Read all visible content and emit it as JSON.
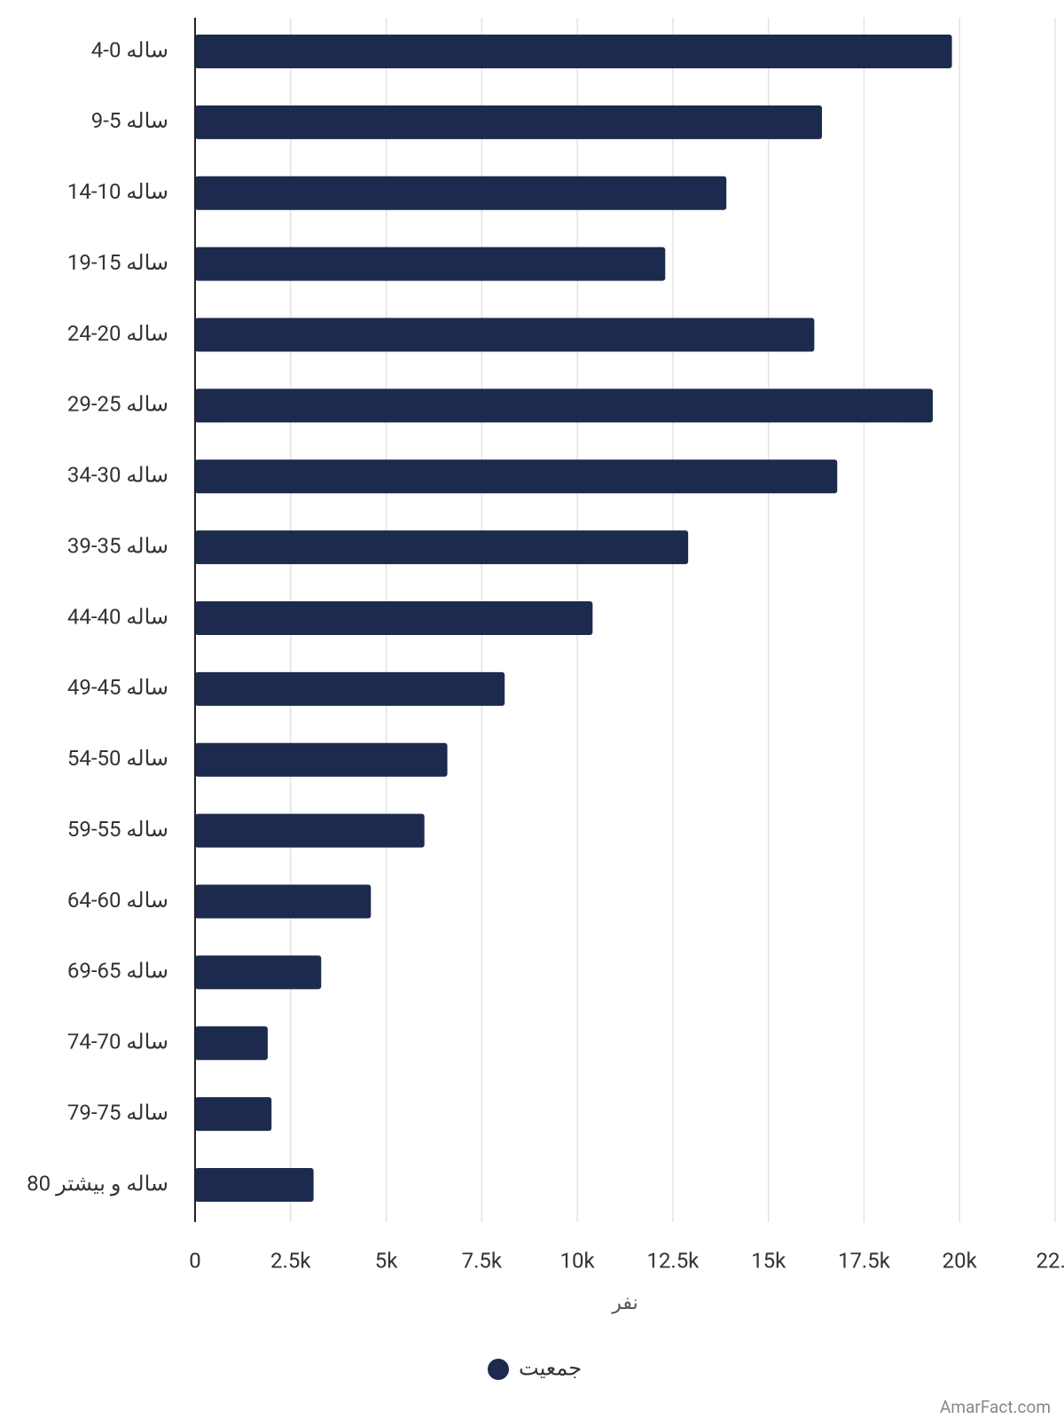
{
  "chart_data": {
    "type": "barh",
    "categories": [
      "ساله 0-4",
      "ساله 5-9",
      "ساله 10-14",
      "ساله 15-19",
      "ساله 20-24",
      "ساله 25-29",
      "ساله 30-34",
      "ساله 35-39",
      "ساله 40-44",
      "ساله 45-49",
      "ساله 50-54",
      "ساله 55-59",
      "ساله 60-64",
      "ساله 65-69",
      "ساله 70-74",
      "ساله 75-79",
      "ساله و بیشتر 80"
    ],
    "series": [
      {
        "name": "جمعیت",
        "color": "#1c2a4d",
        "values": [
          19800,
          16400,
          13900,
          12300,
          16200,
          19300,
          16800,
          12900,
          10400,
          8100,
          6600,
          6000,
          4600,
          3300,
          1900,
          2000,
          3100
        ]
      }
    ],
    "xlim": [
      0,
      22500
    ],
    "xticks": [
      0,
      {
        "value": 2500,
        "label": "2.5k"
      },
      {
        "value": 5000,
        "label": "5k"
      },
      {
        "value": 7500,
        "label": "7.5k"
      },
      {
        "value": 10000,
        "label": "10k"
      },
      {
        "value": 12500,
        "label": "12.5k"
      },
      {
        "value": 15000,
        "label": "15k"
      },
      {
        "value": 17500,
        "label": "17.5k"
      },
      {
        "value": 20000,
        "label": "20k"
      },
      {
        "value": 22500,
        "label": "22…"
      }
    ],
    "xlabel": "نفر",
    "grid": true,
    "legend": "bottom",
    "watermark": "AmarFact.com"
  }
}
